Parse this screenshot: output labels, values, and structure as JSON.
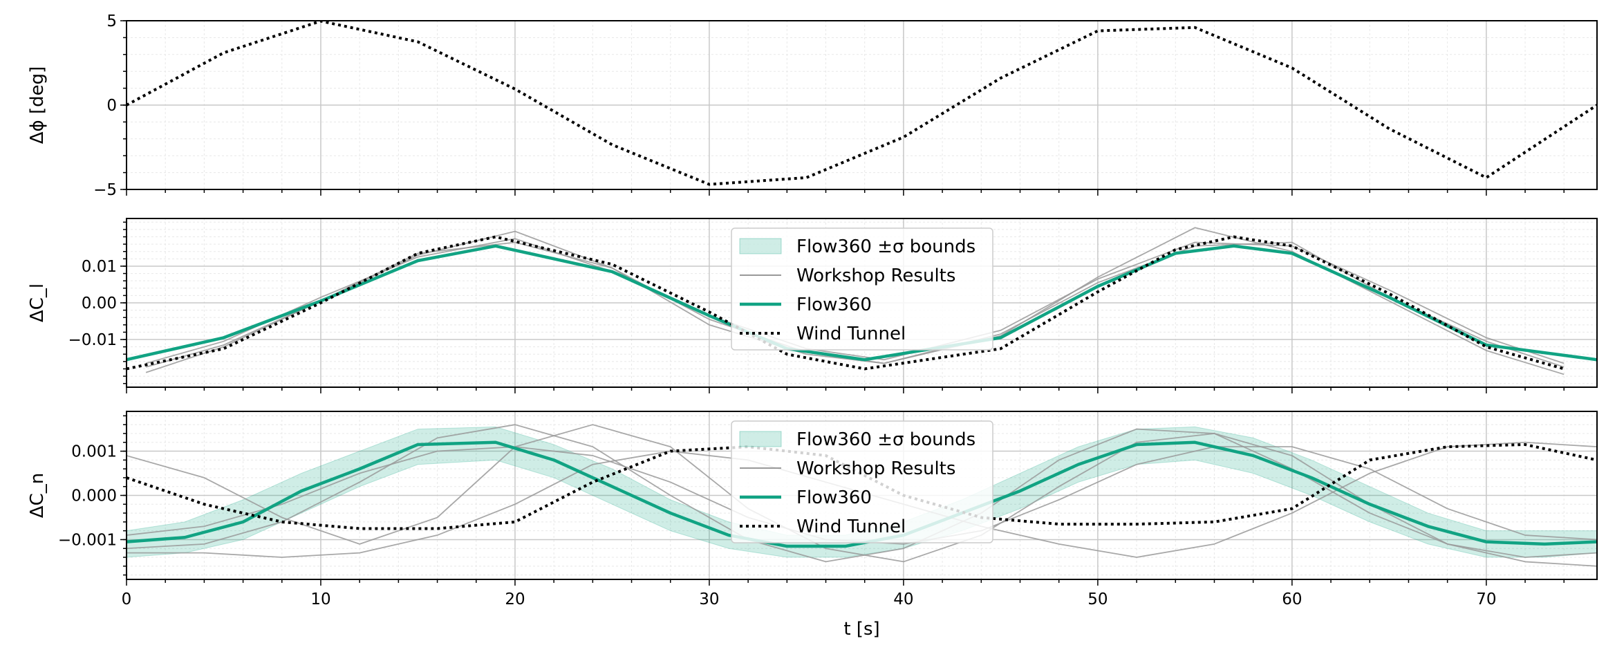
{
  "chart_data": [
    {
      "type": "line",
      "ylabel": "Δϕ [deg]",
      "xlim": [
        0,
        75.7
      ],
      "ylim": [
        -5,
        5
      ],
      "y_ticks": [
        -5,
        0,
        5
      ],
      "y_tick_labels": [
        "−5",
        "0",
        "5"
      ],
      "grid": true,
      "series": [
        {
          "name": "",
          "style": "dotted",
          "color": "#000000",
          "x": [
            0,
            5,
            10,
            15,
            20,
            25,
            30,
            35,
            40,
            45,
            50,
            55,
            60,
            65,
            70,
            75.7
          ],
          "y": [
            0,
            3.1,
            4.98,
            3.75,
            0.95,
            -2.35,
            -4.7,
            -4.3,
            -1.9,
            1.6,
            4.4,
            4.6,
            2.2,
            -1.4,
            -4.3,
            0.0
          ]
        }
      ]
    },
    {
      "type": "line",
      "ylabel": "ΔC_l",
      "xlim": [
        0,
        75.7
      ],
      "ylim": [
        -0.023,
        0.023
      ],
      "y_ticks": [
        -0.01,
        0.0,
        0.01
      ],
      "y_tick_labels": [
        "−0.01",
        "0.00",
        "0.01"
      ],
      "grid": true,
      "legend": {
        "placement": "top-center",
        "entries": [
          "Flow360 ±σ bounds",
          "Workshop Results",
          "Flow360",
          "Wind Tunnel"
        ]
      },
      "series": [
        {
          "name": "Flow360",
          "color": "#11a383",
          "x": [
            0,
            5,
            10,
            15,
            19,
            25,
            30,
            34,
            38,
            45,
            50,
            54,
            57,
            60,
            65,
            70,
            75.7
          ],
          "y": [
            -0.0155,
            -0.0095,
            0.0005,
            0.0115,
            0.0155,
            0.0085,
            -0.0035,
            -0.0125,
            -0.0155,
            -0.0095,
            0.0045,
            0.0135,
            0.0155,
            0.0135,
            0.0015,
            -0.0115,
            -0.0155
          ]
        },
        {
          "name": "Wind Tunnel",
          "style": "dotted",
          "color": "#000000",
          "x": [
            0,
            5,
            10,
            15,
            19,
            25,
            30,
            34,
            38,
            45,
            50,
            54,
            57,
            60,
            65,
            70,
            74
          ],
          "y": [
            -0.018,
            -0.0125,
            0.0,
            0.0135,
            0.018,
            0.0105,
            -0.0025,
            -0.014,
            -0.018,
            -0.0125,
            0.003,
            0.0145,
            0.018,
            0.0155,
            0.0025,
            -0.012,
            -0.018
          ]
        },
        {
          "name": "Workshop Results",
          "color": "#999999",
          "x": [
            1,
            5,
            10,
            15,
            20,
            25,
            30,
            35,
            39,
            45,
            50,
            55,
            60,
            65,
            70,
            74
          ],
          "y": [
            -0.019,
            -0.012,
            0.0005,
            0.013,
            0.0195,
            0.0095,
            -0.006,
            -0.014,
            -0.0165,
            -0.009,
            0.007,
            0.0205,
            0.014,
            0.0005,
            -0.013,
            -0.0195
          ]
        },
        {
          "name": "Workshop Results",
          "color": "#999999",
          "x": [
            1,
            5,
            10,
            15,
            20,
            25,
            30,
            35,
            39,
            45,
            50,
            55,
            60,
            65,
            70,
            74
          ],
          "y": [
            -0.0165,
            -0.0105,
            0.0015,
            0.0125,
            0.0175,
            0.0085,
            -0.0035,
            -0.0125,
            -0.0155,
            -0.0075,
            0.0065,
            0.0165,
            0.0155,
            0.0035,
            -0.0095,
            -0.0165
          ]
        },
        {
          "name": "Workshop Results",
          "color": "#999999",
          "x": [
            1,
            5,
            10,
            15,
            20,
            25,
            30,
            35,
            39,
            45,
            50,
            55,
            60,
            65,
            70,
            74
          ],
          "y": [
            -0.0175,
            -0.0115,
            0.0005,
            0.0135,
            0.0165,
            0.0095,
            -0.0045,
            -0.0135,
            -0.0165,
            -0.0085,
            0.0055,
            0.0155,
            0.0165,
            0.0015,
            -0.0105,
            -0.0175
          ]
        }
      ]
    },
    {
      "type": "line",
      "ylabel": "ΔC_n",
      "xlabel": "t [s]",
      "xlim": [
        0,
        75.7
      ],
      "ylim": [
        -0.0019,
        0.0019
      ],
      "x_ticks": [
        0,
        10,
        20,
        30,
        40,
        50,
        60,
        70
      ],
      "y_ticks": [
        -0.001,
        0.0,
        0.001
      ],
      "y_tick_labels": [
        "−0.001",
        "0.000",
        "0.001"
      ],
      "grid": true,
      "legend": {
        "placement": "top-center",
        "entries": [
          "Flow360 ±σ bounds",
          "Workshop Results",
          "Flow360",
          "Wind Tunnel"
        ]
      },
      "series": [
        {
          "name": "Flow360",
          "color": "#11a383",
          "x": [
            0,
            3,
            6,
            9,
            12,
            15,
            19,
            22,
            25,
            28,
            31,
            34,
            37,
            40,
            43,
            46,
            49,
            52,
            55,
            58,
            61,
            64,
            67,
            70,
            73,
            75.7
          ],
          "y": [
            -0.00105,
            -0.00095,
            -0.0006,
            0.0001,
            0.0006,
            0.00115,
            0.0012,
            0.0008,
            0.0002,
            -0.0004,
            -0.0009,
            -0.00115,
            -0.00115,
            -0.0009,
            -0.0004,
            0.0001,
            0.0007,
            0.00115,
            0.0012,
            0.0009,
            0.0004,
            -0.0002,
            -0.0007,
            -0.00105,
            -0.0011,
            -0.00105
          ]
        },
        {
          "name": "Flow360 ±σ bounds",
          "type": "band",
          "color": "#11a383",
          "x": [
            0,
            3,
            6,
            9,
            12,
            15,
            19,
            22,
            25,
            28,
            31,
            34,
            37,
            40,
            43,
            46,
            49,
            52,
            55,
            58,
            61,
            64,
            67,
            70,
            73,
            75.7
          ],
          "upper": [
            -0.0008,
            -0.0006,
            -0.0001,
            0.0005,
            0.001,
            0.0015,
            0.00155,
            0.00115,
            0.0006,
            -0.0001,
            -0.0006,
            -0.0009,
            -0.0009,
            -0.0006,
            -0.0001,
            0.0005,
            0.0011,
            0.0015,
            0.00155,
            0.0013,
            0.0008,
            0.0002,
            -0.0004,
            -0.0008,
            -0.0008,
            -0.0008
          ],
          "lower": [
            -0.0014,
            -0.0013,
            -0.001,
            -0.0004,
            0.0002,
            0.0007,
            0.0008,
            0.0004,
            -0.0002,
            -0.0008,
            -0.0012,
            -0.0014,
            -0.0014,
            -0.0012,
            -0.0008,
            -0.0003,
            0.0003,
            0.0007,
            0.0008,
            0.0005,
            0.0,
            -0.0006,
            -0.0011,
            -0.0014,
            -0.0014,
            -0.0013
          ]
        },
        {
          "name": "Wind Tunnel",
          "style": "dotted",
          "color": "#000000",
          "x": [
            0,
            4,
            8,
            12,
            16,
            20,
            24,
            28,
            32,
            36,
            40,
            44,
            48,
            52,
            56,
            60,
            64,
            68,
            72,
            75.7
          ],
          "y": [
            0.0004,
            -0.0002,
            -0.0006,
            -0.00075,
            -0.00075,
            -0.0006,
            0.0003,
            0.001,
            0.0011,
            0.0009,
            0.0,
            -0.0005,
            -0.00065,
            -0.00065,
            -0.0006,
            -0.0003,
            0.0008,
            0.0011,
            0.00115,
            0.0008
          ]
        },
        {
          "name": "Workshop Results",
          "color": "#999999",
          "x": [
            0,
            4,
            8,
            12,
            16,
            20,
            24,
            28,
            32,
            36,
            40,
            44,
            48,
            52,
            56,
            60,
            64,
            68,
            72,
            75.7
          ],
          "y": [
            0.0009,
            0.0004,
            -0.0005,
            -0.0011,
            -0.0005,
            0.0011,
            0.0016,
            0.0011,
            -0.0003,
            -0.0012,
            -0.0015,
            -0.0009,
            0.0002,
            0.0012,
            0.0014,
            0.0009,
            -0.0002,
            -0.0011,
            -0.0015,
            -0.0016
          ]
        },
        {
          "name": "Workshop Results",
          "color": "#999999",
          "x": [
            0,
            4,
            8,
            12,
            16,
            20,
            24,
            28,
            32,
            36,
            40,
            44,
            48,
            52,
            56,
            60,
            64,
            68,
            72,
            75.7
          ],
          "y": [
            -0.0012,
            -0.0011,
            -0.0006,
            0.0003,
            0.0013,
            0.0016,
            0.0011,
            0.0,
            -0.001,
            -0.0015,
            -0.0012,
            -0.0004,
            0.0008,
            0.0015,
            0.0014,
            0.0006,
            -0.0004,
            -0.0011,
            -0.0014,
            -0.0013
          ]
        },
        {
          "name": "Workshop Results",
          "color": "#999999",
          "x": [
            0,
            4,
            8,
            12,
            16,
            20,
            24,
            28,
            32,
            36,
            40,
            44,
            48,
            52,
            56,
            60,
            64,
            68,
            72,
            75.7
          ],
          "y": [
            -0.0013,
            -0.0013,
            -0.0014,
            -0.0013,
            -0.0009,
            -0.0002,
            0.0007,
            0.001,
            0.0008,
            0.0003,
            -0.0002,
            -0.0007,
            -0.0011,
            -0.0014,
            -0.0011,
            -0.0004,
            0.0005,
            0.0011,
            0.0012,
            0.0011
          ]
        },
        {
          "name": "Workshop Results",
          "color": "#999999",
          "x": [
            0,
            4,
            8,
            12,
            16,
            20,
            24,
            28,
            32,
            36,
            40,
            44,
            48,
            52,
            56,
            60,
            64,
            68,
            72,
            75.7
          ],
          "y": [
            -0.0009,
            -0.0007,
            -0.0002,
            0.0005,
            0.001,
            0.0011,
            0.0009,
            0.0003,
            -0.0005,
            -0.001,
            -0.0011,
            -0.0008,
            -0.0001,
            0.0007,
            0.0011,
            0.0011,
            0.0006,
            -0.0003,
            -0.0009,
            -0.001
          ]
        }
      ]
    }
  ]
}
